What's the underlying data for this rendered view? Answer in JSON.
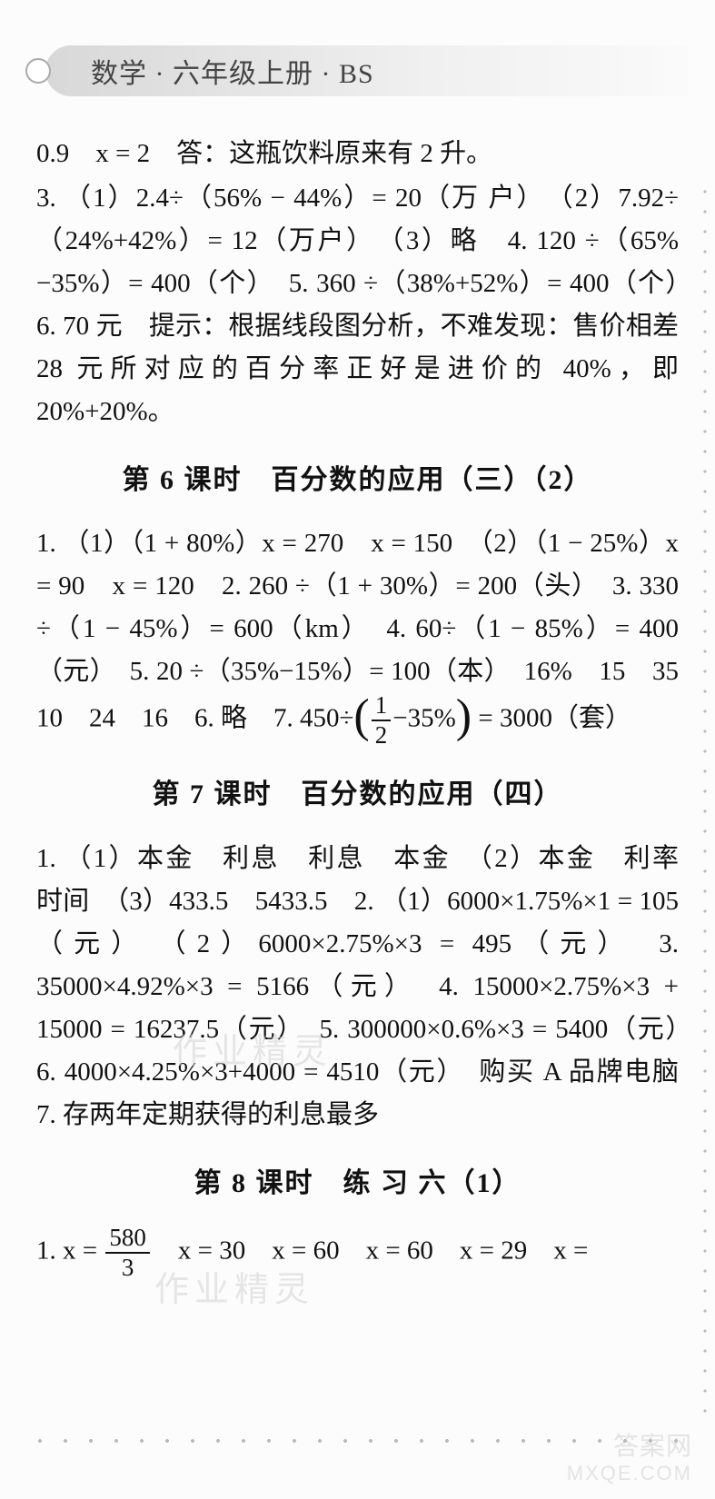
{
  "header": {
    "title": "数学 · 六年级上册 · BS"
  },
  "block_intro": {
    "line1": "0.9　x = 2　答：这瓶饮料原来有 2 升。",
    "line2": "3. （1）2.4÷（56% − 44%）= 20（万 户）　（2）7.92÷（24%+42%）= 12（万户）　（3）略　4. 120 ÷（65%−35%）= 400（个）　5. 360 ÷（38%+52%）= 400（个）　6. 70 元　提示：根据线段图分析，不难发现：售价相差 28 元所对应的百分率正好是进价的 40%，即20%+20%。"
  },
  "section6": {
    "heading": "第 6 课时　百分数的应用（三）（2）",
    "body_a": "1. （1）（1 + 80%）x = 270　x = 150　（2）（1 − 25%）x = 90　x = 120　2. 260 ÷（1 + 30%）= 200（头）　3. 330 ÷（1 − 45%）= 600（km）　4. 60÷（1 − 85%）= 400（元）　5. 20 ÷（35%−15%）= 100（本）　16%　15　35　10　24　16　6. 略　7. 450÷",
    "frac_num": "1",
    "frac_den": "2",
    "body_b": "−35%",
    "body_c": " = 3000（套）"
  },
  "section7": {
    "heading": "第 7 课时　百分数的应用（四）",
    "body": "1. （1）本金　利息　利息　本金　（2）本金　利率　时间　（3）433.5　5433.5　2. （1）6000×1.75%×1 = 105（元）　（2）6000×2.75%×3 = 495（元）　3. 35000×4.92%×3 = 5166（元）　4. 15000×2.75%×3 + 15000 = 16237.5（元）　5. 300000×0.6%×3 = 5400（元）　6. 4000×4.25%×3+4000 = 4510（元）　购买 A 品牌电脑　7. 存两年定期获得的利息最多"
  },
  "section8": {
    "heading": "第 8 课时　练 习 六（1）",
    "body_a": "1. x = ",
    "frac_num": "580",
    "frac_den": "3",
    "body_b": "　x = 30　x = 60　x = 60　x = 29　x ="
  },
  "watermarks": {
    "w1": "作业精灵",
    "w2": "作业精灵",
    "w3": "答案网",
    "w4": "MXQE.COM"
  }
}
